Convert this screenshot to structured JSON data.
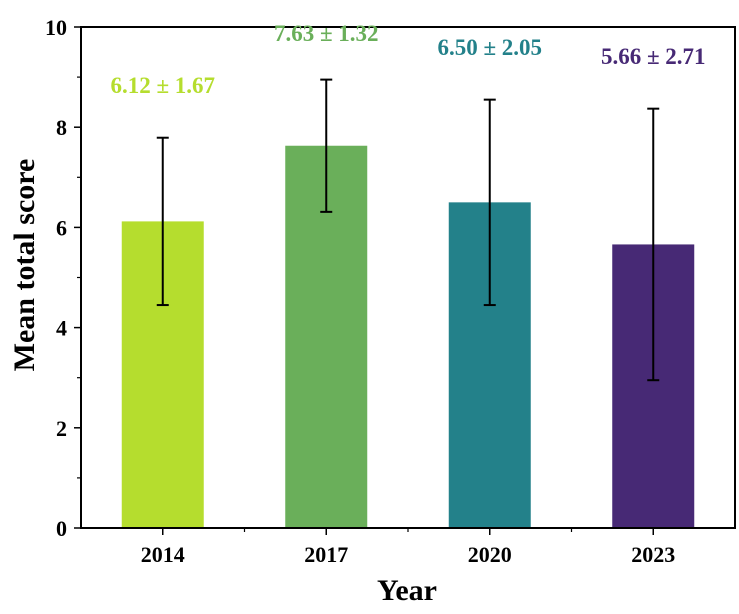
{
  "chart_data": {
    "type": "bar",
    "title": "",
    "xlabel": "Year",
    "ylabel": "Mean total score",
    "ylim": [
      0,
      10
    ],
    "yticks": [
      "0",
      "2",
      "4",
      "6",
      "8",
      "10"
    ],
    "categories": [
      "2014",
      "2017",
      "2020",
      "2023"
    ],
    "values": [
      6.12,
      7.63,
      6.5,
      5.66
    ],
    "errors": [
      1.67,
      1.32,
      2.05,
      2.71
    ],
    "value_labels": [
      "6.12 ± 1.67",
      "7.63 ± 1.32",
      "6.50 ± 2.05",
      "5.66 ± 2.71"
    ],
    "colors": [
      "#b5dd2e",
      "#6aaf5a",
      "#23818a",
      "#472975"
    ],
    "grid": false
  }
}
